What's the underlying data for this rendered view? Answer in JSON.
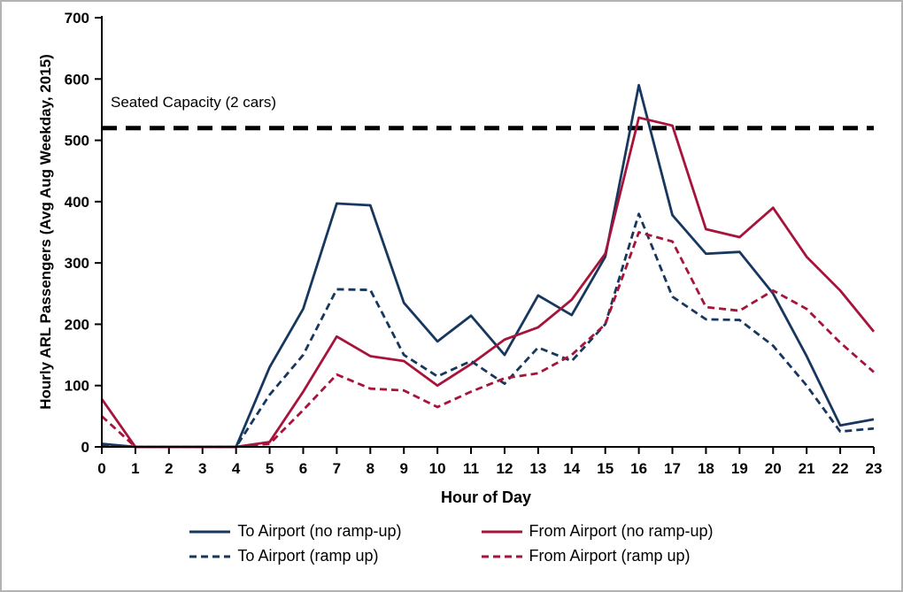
{
  "chart_data": {
    "type": "line",
    "title": "",
    "xlabel": "Hour of Day",
    "ylabel": "Hourly ARL Passengers (Avg Aug Weekday, 2015)",
    "grid": false,
    "legend_position": "bottom",
    "xlim": [
      0,
      23
    ],
    "ylim": [
      0,
      700
    ],
    "yticks": [
      0,
      100,
      200,
      300,
      400,
      500,
      600,
      700
    ],
    "x": [
      0,
      1,
      2,
      3,
      4,
      5,
      6,
      7,
      8,
      9,
      10,
      11,
      12,
      13,
      14,
      15,
      16,
      17,
      18,
      19,
      20,
      21,
      22,
      23
    ],
    "capacity_line": {
      "label": "Seated Capacity (2 cars)",
      "value": 520,
      "style": "dashed",
      "color": "#000000"
    },
    "series": [
      {
        "name": "To Airport (no ramp-up)",
        "color": "#17375E",
        "dash": "solid",
        "values": [
          5,
          0,
          0,
          0,
          0,
          130,
          225,
          397,
          394,
          235,
          172,
          214,
          150,
          247,
          215,
          310,
          590,
          378,
          315,
          318,
          250,
          148,
          35,
          45
        ]
      },
      {
        "name": "From Airport (no ramp-up)",
        "color": "#A6133B",
        "dash": "solid",
        "values": [
          78,
          0,
          0,
          0,
          0,
          8,
          90,
          180,
          148,
          140,
          100,
          135,
          175,
          195,
          240,
          315,
          537,
          524,
          355,
          342,
          390,
          310,
          255,
          188
        ]
      },
      {
        "name": "To Airport (ramp up)",
        "color": "#17375E",
        "dash": "dashed",
        "values": [
          3,
          0,
          0,
          0,
          0,
          85,
          150,
          257,
          256,
          150,
          115,
          140,
          103,
          162,
          140,
          200,
          380,
          245,
          208,
          207,
          165,
          100,
          25,
          30
        ]
      },
      {
        "name": "From Airport (ramp up)",
        "color": "#A6133B",
        "dash": "dashed",
        "values": [
          50,
          0,
          0,
          0,
          0,
          5,
          60,
          118,
          95,
          92,
          65,
          90,
          112,
          120,
          150,
          200,
          350,
          335,
          228,
          222,
          255,
          225,
          170,
          122
        ]
      }
    ]
  }
}
